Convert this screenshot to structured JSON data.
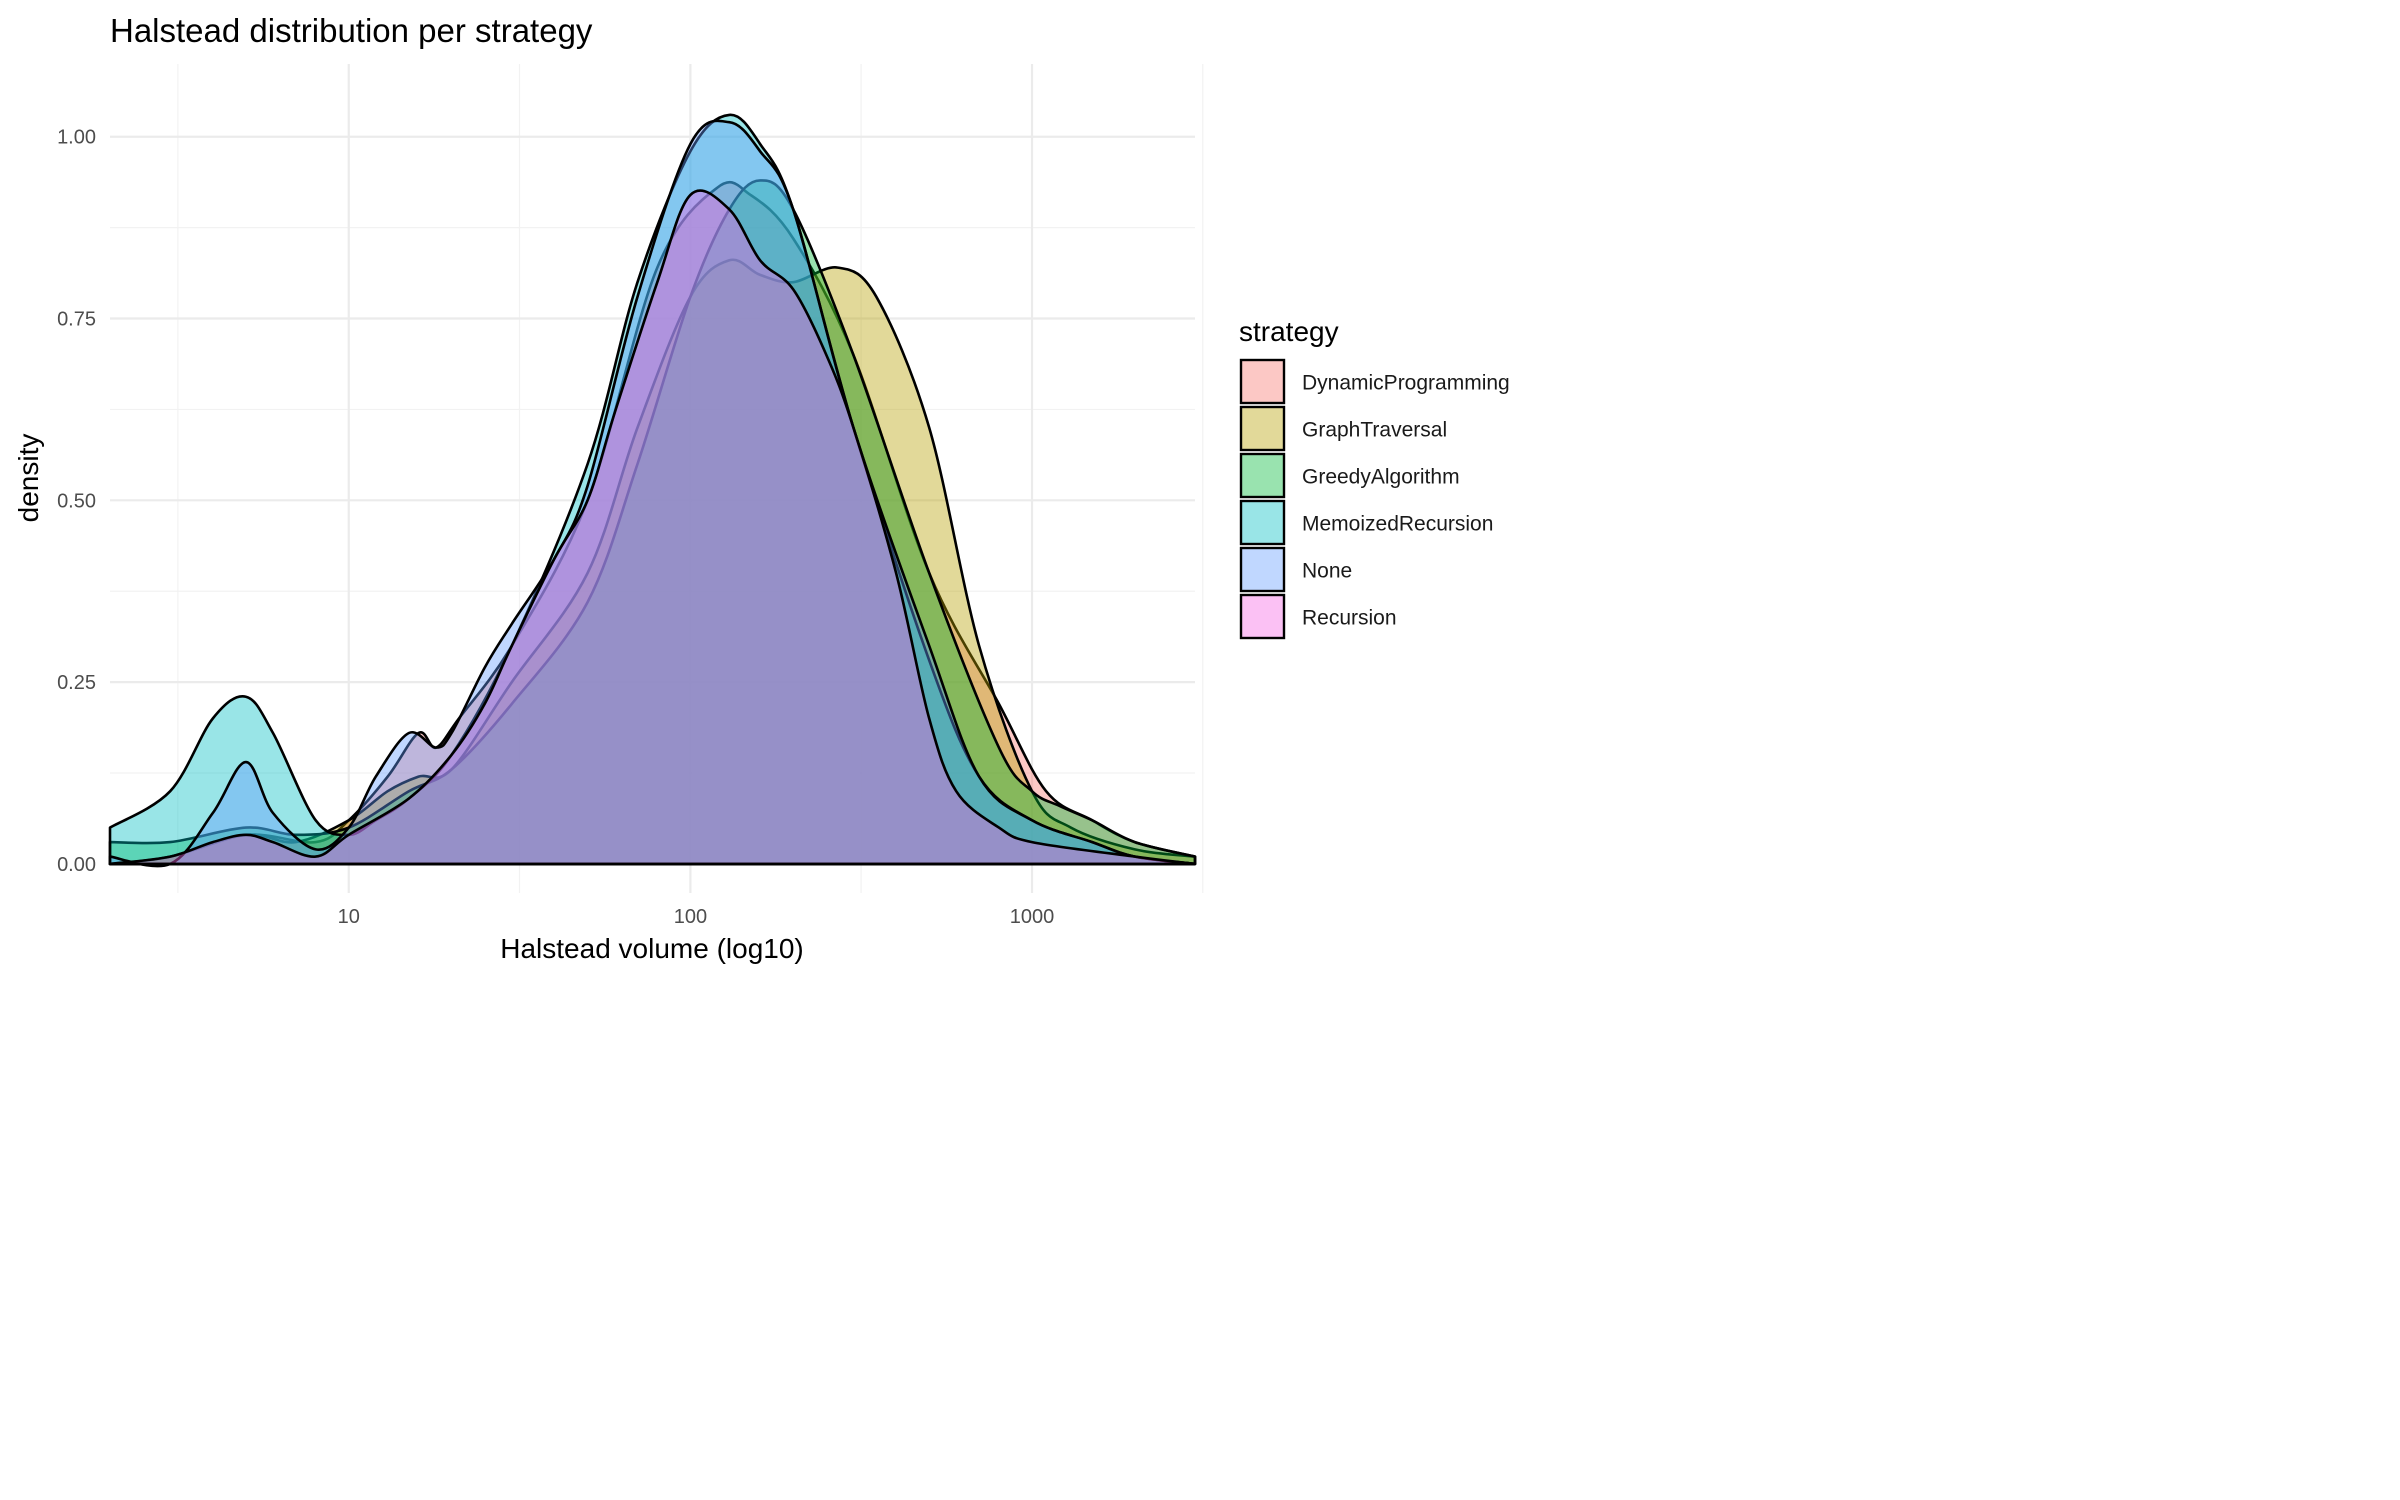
{
  "chart_data": {
    "type": "area",
    "title": "Halstead distribution per strategy",
    "xlabel": "Halstead volume (log10)",
    "ylabel": "density",
    "x_scale": "log10",
    "x_range": [
      2,
      3000
    ],
    "ylim": [
      -0.04,
      1.1
    ],
    "x_ticks": [
      10,
      100,
      1000
    ],
    "x_minor_ticks": [
      3.16,
      31.6,
      316,
      3162
    ],
    "y_ticks": [
      0,
      0.25,
      0.5,
      0.75,
      1.0
    ],
    "y_tick_labels": [
      "0.00",
      "0.25",
      "0.50",
      "0.75",
      "1.00"
    ],
    "grid": true,
    "legend": {
      "title": "strategy",
      "position": "right"
    },
    "fill_opacity": 0.4,
    "series": [
      {
        "name": "DynamicProgramming",
        "color": "#F8766D",
        "x": [
          2,
          3,
          5,
          8,
          10,
          13,
          16,
          18,
          21,
          30,
          50,
          80,
          120,
          150,
          200,
          300,
          500,
          800,
          1100,
          1500,
          2000,
          3000
        ],
        "y": [
          0.0,
          0.01,
          0.04,
          0.03,
          0.06,
          0.12,
          0.18,
          0.16,
          0.2,
          0.3,
          0.5,
          0.82,
          0.93,
          0.92,
          0.86,
          0.7,
          0.4,
          0.22,
          0.1,
          0.06,
          0.03,
          0.01
        ]
      },
      {
        "name": "GraphTraversal",
        "color": "#B79F00",
        "x": [
          2,
          3,
          5,
          7,
          10,
          13,
          16,
          20,
          30,
          50,
          70,
          100,
          130,
          160,
          200,
          270,
          350,
          500,
          700,
          1000,
          1300,
          2000,
          3000
        ],
        "y": [
          0.0,
          0.01,
          0.04,
          0.03,
          0.06,
          0.1,
          0.12,
          0.13,
          0.25,
          0.4,
          0.6,
          0.78,
          0.83,
          0.81,
          0.8,
          0.82,
          0.78,
          0.6,
          0.3,
          0.1,
          0.05,
          0.02,
          0.01
        ]
      },
      {
        "name": "GreedyAlgorithm",
        "color": "#00BA38",
        "x": [
          2,
          3,
          5,
          7,
          10,
          15,
          20,
          30,
          50,
          70,
          100,
          130,
          160,
          200,
          300,
          500,
          800,
          1000,
          1200,
          1500,
          2000,
          3000
        ],
        "y": [
          0.03,
          0.03,
          0.05,
          0.04,
          0.05,
          0.1,
          0.13,
          0.22,
          0.36,
          0.55,
          0.78,
          0.9,
          0.94,
          0.9,
          0.7,
          0.4,
          0.16,
          0.1,
          0.08,
          0.06,
          0.03,
          0.01
        ]
      },
      {
        "name": "MemoizedRecursion",
        "color": "#00BFC4",
        "x": [
          2,
          3,
          4,
          5,
          6,
          8,
          10,
          12,
          15,
          20,
          30,
          50,
          70,
          100,
          130,
          160,
          200,
          300,
          500,
          700,
          1000,
          1500,
          2000,
          3000
        ],
        "y": [
          0.05,
          0.1,
          0.2,
          0.23,
          0.18,
          0.06,
          0.04,
          0.06,
          0.09,
          0.15,
          0.3,
          0.55,
          0.8,
          0.98,
          1.03,
          0.99,
          0.9,
          0.6,
          0.28,
          0.12,
          0.06,
          0.03,
          0.01,
          0.0
        ]
      },
      {
        "name": "None",
        "color": "#619CFF",
        "x": [
          2,
          3,
          4,
          5,
          6,
          8,
          10,
          12,
          15,
          18,
          20,
          25,
          30,
          40,
          50,
          70,
          100,
          130,
          160,
          200,
          300,
          500,
          700,
          1000,
          1500,
          2000,
          3000
        ],
        "y": [
          0.01,
          0.0,
          0.07,
          0.14,
          0.07,
          0.02,
          0.05,
          0.12,
          0.18,
          0.16,
          0.18,
          0.27,
          0.33,
          0.42,
          0.52,
          0.78,
          0.99,
          1.02,
          0.98,
          0.9,
          0.6,
          0.3,
          0.12,
          0.06,
          0.03,
          0.01,
          0.0
        ]
      },
      {
        "name": "Recursion",
        "color": "#F564E3",
        "x": [
          2,
          3,
          4,
          5,
          6,
          8,
          10,
          15,
          20,
          25,
          30,
          40,
          50,
          60,
          80,
          100,
          130,
          160,
          200,
          250,
          300,
          400,
          500,
          600,
          800,
          1000,
          2000,
          3000
        ],
        "y": [
          0.0,
          0.01,
          0.03,
          0.04,
          0.03,
          0.01,
          0.04,
          0.09,
          0.15,
          0.22,
          0.3,
          0.42,
          0.5,
          0.62,
          0.8,
          0.92,
          0.9,
          0.83,
          0.79,
          0.7,
          0.6,
          0.4,
          0.2,
          0.1,
          0.05,
          0.03,
          0.01,
          0.0
        ]
      }
    ]
  }
}
